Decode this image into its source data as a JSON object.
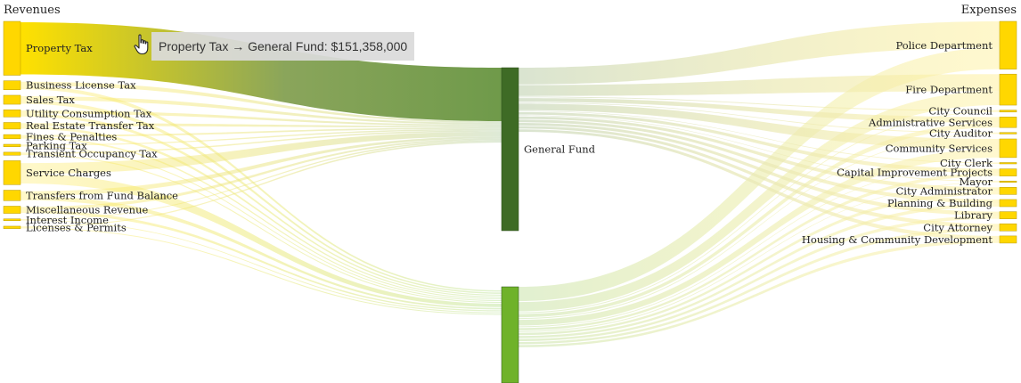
{
  "chart_data": {
    "type": "sankey",
    "columns": {
      "left_title": "Revenues",
      "right_title": "Expenses"
    },
    "colors": {
      "source": "#ffd700",
      "general_fund": "#3e6b25",
      "other_fund": "#6fb22a",
      "target": "#ffd700",
      "highlight_flow": "#6f9a4a"
    },
    "sources": [
      {
        "name": "Property Tax",
        "value": 151358000
      },
      {
        "name": "Business License Tax",
        "value": 60
      },
      {
        "name": "Sales Tax",
        "value": 60
      },
      {
        "name": "Utility Consumption Tax",
        "value": 48
      },
      {
        "name": "Real Estate Transfer Tax",
        "value": 44
      },
      {
        "name": "Fines & Penalties",
        "value": 28
      },
      {
        "name": "Parking Tax",
        "value": 16
      },
      {
        "name": "Transient Occupancy Tax",
        "value": 20
      },
      {
        "name": "Service Charges",
        "value": 160
      },
      {
        "name": "Transfers from Fund Balance",
        "value": 70
      },
      {
        "name": "Miscellaneous Revenue",
        "value": 48
      },
      {
        "name": "Interest Income",
        "value": 4
      },
      {
        "name": "Licenses & Permits",
        "value": 16
      }
    ],
    "middle": [
      {
        "name": "General Fund",
        "value": 470
      },
      {
        "name": "",
        "value": 300
      }
    ],
    "targets": [
      {
        "name": "Police Department",
        "value": 200
      },
      {
        "name": "Fire Department",
        "value": 130
      },
      {
        "name": "City Council",
        "value": 8
      },
      {
        "name": "Administrative Services",
        "value": 44
      },
      {
        "name": "City Auditor",
        "value": 6
      },
      {
        "name": "Community Services",
        "value": 78
      },
      {
        "name": "City Clerk",
        "value": 4
      },
      {
        "name": "Capital Improvement Projects",
        "value": 30
      },
      {
        "name": "Mayor",
        "value": 4
      },
      {
        "name": "City Administrator",
        "value": 30
      },
      {
        "name": "Planning & Building",
        "value": 30
      },
      {
        "name": "Library",
        "value": 30
      },
      {
        "name": "City Attorney",
        "value": 30
      },
      {
        "name": "Housing & Community Development",
        "value": 30
      }
    ],
    "highlighted_link": {
      "source": "Property Tax",
      "target": "General Fund",
      "value": 151358000
    },
    "tooltip_text": "Property Tax → General Fund: $151,358,000"
  }
}
